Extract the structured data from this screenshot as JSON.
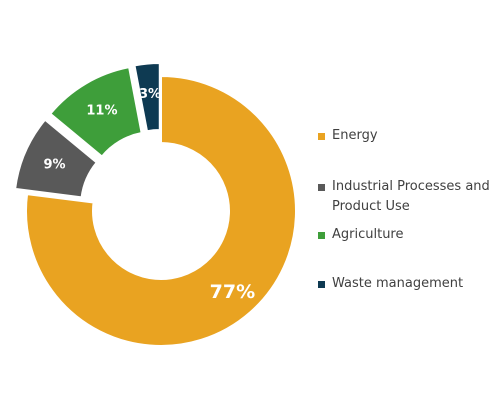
{
  "chart_data": {
    "type": "pie",
    "variant": "donut",
    "title": "",
    "slices": [
      {
        "name": "Energy",
        "value": 77,
        "label": "77%",
        "color": "#E9A321",
        "exploded": false
      },
      {
        "name": "Industrial Processes and Product Use",
        "value": 9,
        "label": "9%",
        "color": "#595959",
        "exploded": true
      },
      {
        "name": "Agriculture",
        "value": 11,
        "label": "11%",
        "color": "#3E9E3A",
        "exploded": true
      },
      {
        "name": "Waste management",
        "value": 3,
        "label": "3%",
        "color": "#0E3A52",
        "exploded": true
      }
    ],
    "legend_position": "right"
  },
  "legend": {
    "items": [
      {
        "label": "Energy",
        "color": "#E9A321"
      },
      {
        "label": "Industrial Processes and Product Use",
        "color": "#595959"
      },
      {
        "label": "Agriculture",
        "color": "#3E9E3A"
      },
      {
        "label": "Waste management",
        "color": "#0E3A52"
      }
    ]
  }
}
